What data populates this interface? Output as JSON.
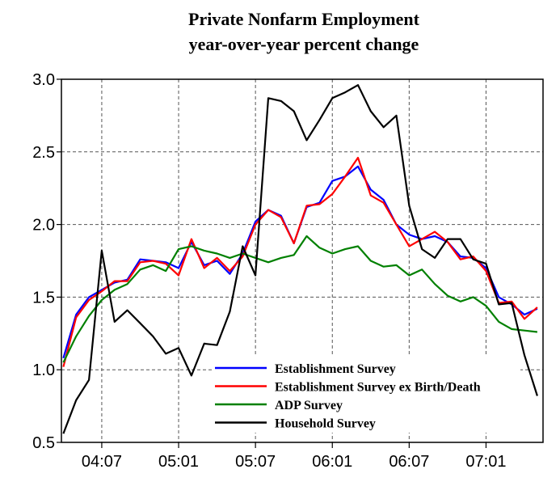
{
  "chart_data": {
    "type": "line",
    "title": "Private Nonfarm Employment",
    "subtitle": "year-over-year percent change",
    "xlabel": "",
    "ylabel": "",
    "ylim": [
      0.5,
      3.0
    ],
    "yticks": [
      "0.5",
      "1.0",
      "1.5",
      "2.0",
      "2.5",
      "3.0"
    ],
    "x": [
      "04:04",
      "04:05",
      "04:06",
      "04:07",
      "04:08",
      "04:09",
      "04:10",
      "04:11",
      "04:12",
      "05:01",
      "05:02",
      "05:03",
      "05:04",
      "05:05",
      "05:06",
      "05:07",
      "05:08",
      "05:09",
      "05:10",
      "05:11",
      "05:12",
      "06:01",
      "06:02",
      "06:03",
      "06:04",
      "06:05",
      "06:06",
      "06:07",
      "06:08",
      "06:09",
      "06:10",
      "06:11",
      "06:12",
      "07:01",
      "07:02",
      "07:03",
      "07:04",
      "07:05"
    ],
    "xticks": [
      "04:07",
      "05:01",
      "05:07",
      "06:01",
      "06:07",
      "07:01"
    ],
    "grid": true,
    "legend_position": "bottom-right",
    "series": [
      {
        "name": "Establishment Survey",
        "color": "#0000ff",
        "values": [
          1.08,
          1.38,
          1.5,
          1.55,
          1.6,
          1.62,
          1.76,
          1.75,
          1.74,
          1.7,
          1.88,
          1.72,
          1.75,
          1.66,
          1.8,
          2.02,
          2.1,
          2.06,
          1.87,
          2.12,
          2.15,
          2.3,
          2.33,
          2.4,
          2.24,
          2.17,
          2.0,
          1.93,
          1.9,
          1.92,
          1.88,
          1.78,
          1.77,
          1.7,
          1.5,
          1.45,
          1.38,
          1.42
        ]
      },
      {
        "name": "Establishment Survey ex Birth/Death",
        "color": "#ff0000",
        "values": [
          1.02,
          1.36,
          1.48,
          1.54,
          1.61,
          1.61,
          1.74,
          1.75,
          1.73,
          1.65,
          1.9,
          1.7,
          1.77,
          1.68,
          1.78,
          2.0,
          2.1,
          2.05,
          1.87,
          2.13,
          2.14,
          2.21,
          2.33,
          2.46,
          2.2,
          2.15,
          2.0,
          1.85,
          1.9,
          1.95,
          1.88,
          1.76,
          1.78,
          1.68,
          1.46,
          1.47,
          1.35,
          1.43
        ]
      },
      {
        "name": "ADP Survey",
        "color": "#008000",
        "values": [
          1.05,
          1.23,
          1.37,
          1.48,
          1.55,
          1.59,
          1.69,
          1.72,
          1.68,
          1.83,
          1.85,
          1.82,
          1.8,
          1.77,
          1.8,
          1.77,
          1.74,
          1.77,
          1.79,
          1.92,
          1.84,
          1.8,
          1.83,
          1.85,
          1.75,
          1.71,
          1.72,
          1.65,
          1.69,
          1.59,
          1.51,
          1.47,
          1.5,
          1.44,
          1.33,
          1.28,
          1.27,
          1.26
        ]
      },
      {
        "name": "Household Survey",
        "color": "#000000",
        "values": [
          0.56,
          0.79,
          0.93,
          1.82,
          1.33,
          1.41,
          1.32,
          1.23,
          1.11,
          1.15,
          0.96,
          1.18,
          1.17,
          1.4,
          1.85,
          1.65,
          2.87,
          2.85,
          2.78,
          2.58,
          2.72,
          2.87,
          2.91,
          2.96,
          2.78,
          2.67,
          2.75,
          2.13,
          1.83,
          1.77,
          1.9,
          1.9,
          1.76,
          1.73,
          1.45,
          1.46,
          1.1,
          0.82
        ]
      }
    ]
  }
}
